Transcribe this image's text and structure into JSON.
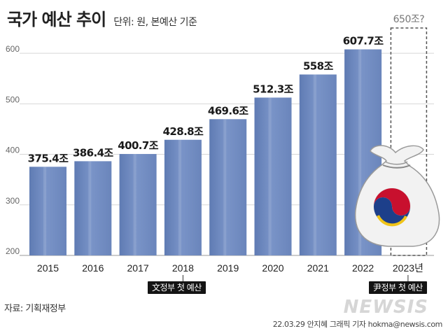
{
  "header": {
    "title": "국가 예산 추이",
    "subtitle": "단위: 원, 본예산 기준"
  },
  "chart_data": {
    "type": "bar",
    "categories": [
      "2015",
      "2016",
      "2017",
      "2018",
      "2019",
      "2020",
      "2021",
      "2022",
      "2023년"
    ],
    "values": [
      375.4,
      386.4,
      400.7,
      428.8,
      469.6,
      512.3,
      558,
      607.7,
      null
    ],
    "value_labels": [
      "375.4조",
      "386.4조",
      "400.7조",
      "428.8조",
      "469.6조",
      "512.3조",
      "558조",
      "607.7조",
      "650조?"
    ],
    "projected": {
      "category": "2023년",
      "value": 650,
      "label": "650조?"
    },
    "yticks": [
      200,
      300,
      400,
      500,
      600
    ],
    "ylim": [
      200,
      650
    ],
    "grid": true,
    "bar_color": "#7089bd"
  },
  "annotations": {
    "moon": "文정부 첫 예산",
    "yoon": "尹정부 첫 예산"
  },
  "footer": {
    "source": "자료: 기획재정부",
    "credit": "22.03.29 안지혜 그래픽 기자 hokma@newsis.com",
    "watermark": "NEWSIS"
  },
  "icon": "money-bag-icon"
}
